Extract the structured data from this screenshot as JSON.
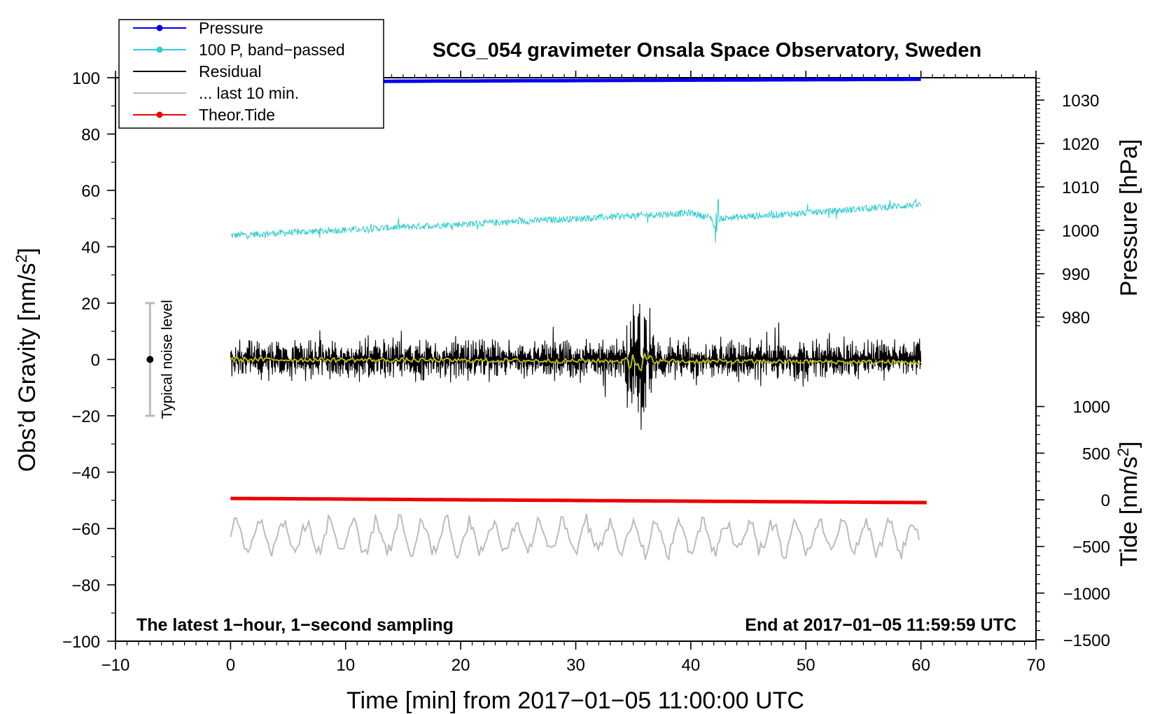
{
  "chart_data": {
    "type": "line",
    "title": "SCG_054 gravimeter Onsala Space Observatory, Sweden",
    "xlabel": "Time [min] from 2017−01−05 11:00:00 UTC",
    "ylabel_left": "Obs’d Gravity [nm/s",
    "ylabel_left_sup": "2",
    "ylabel_left_end": "]",
    "ylabel_pressure": "Pressure [hPa]",
    "ylabel_tide": "Tide [nm/s",
    "ylabel_tide_sup": "2",
    "ylabel_tide_end": "]",
    "xlim": [
      -10,
      70
    ],
    "ylim_left": [
      -100,
      100
    ],
    "pressure_range": [
      977,
      1035
    ],
    "tide_range": [
      -1500,
      1500
    ],
    "x_ticks": [
      "−10",
      "0",
      "10",
      "20",
      "30",
      "40",
      "50",
      "60",
      "70"
    ],
    "x_tick_values": [
      -10,
      0,
      10,
      20,
      30,
      40,
      50,
      60,
      70
    ],
    "y_ticks": [
      "100",
      "80",
      "60",
      "40",
      "20",
      "0",
      "−20",
      "−40",
      "−60",
      "−80",
      "−100"
    ],
    "y_tick_values": [
      100,
      80,
      60,
      40,
      20,
      0,
      -20,
      -40,
      -60,
      -80,
      -100
    ],
    "pressure_ticks": [
      "1030",
      "1020",
      "1010",
      "1000",
      "990",
      "980"
    ],
    "pressure_tick_values": [
      1030,
      1020,
      1010,
      1000,
      990,
      980
    ],
    "tide_ticks": [
      "1000",
      "500",
      "0",
      "−500",
      "−1000",
      "−1500"
    ],
    "tide_tick_values": [
      1000,
      500,
      0,
      -500,
      -1000,
      -1500
    ],
    "annotation_left": "The latest 1−hour, 1−second sampling",
    "annotation_right": "End at 2017−01−05 11:59:59 UTC",
    "noise_bar": {
      "label": "Typical noise level",
      "x": -7,
      "center": 0,
      "half_range": 20
    },
    "legend": [
      {
        "label": "Pressure",
        "color": "#0000ee",
        "marker": true
      },
      {
        "label": "100 P, band−passed",
        "color": "#33cccc",
        "marker": true
      },
      {
        "label": "Residual",
        "color": "#000000",
        "marker": false
      },
      {
        "label": "... last 10 min.",
        "color": "#bbbbbb",
        "marker": false
      },
      {
        "label": "Theor.Tide",
        "color": "#ee0000",
        "marker": true
      }
    ],
    "series": [
      {
        "name": "Pressure",
        "color": "#0000ee",
        "axis": "pressure",
        "x": [
          0,
          60
        ],
        "values": [
          1034.2,
          1034.8
        ],
        "style": "thick"
      },
      {
        "name": "100 P, band-passed",
        "color": "#33cccc",
        "axis": "left",
        "x": [
          0,
          10,
          20,
          30,
          40,
          42,
          50,
          60
        ],
        "values": [
          44,
          46,
          48,
          50,
          52,
          50,
          52,
          55
        ],
        "noise": 1.2,
        "spike": {
          "x": 42.2,
          "amp": 12
        }
      },
      {
        "name": "Residual",
        "color": "#000000",
        "axis": "left",
        "x": [
          0,
          60
        ],
        "values": [
          0,
          0
        ],
        "noise": 6,
        "burst": {
          "x": 35.5,
          "amp": 20
        }
      },
      {
        "name": "Residual smoothed",
        "color": "#bbbb11",
        "axis": "left",
        "x": [
          0,
          60
        ],
        "values": [
          0,
          -1
        ],
        "noise": 0.8
      },
      {
        "name": "... last 10 min.",
        "color": "#bbbbbb",
        "axis": "left",
        "x": [
          0,
          60
        ],
        "values": [
          -63,
          -63
        ],
        "noise": 7
      },
      {
        "name": "Theor.Tide",
        "color": "#ee0000",
        "axis": "tide",
        "x": [
          0,
          60.5
        ],
        "values": [
          15,
          -30
        ]
      }
    ]
  }
}
